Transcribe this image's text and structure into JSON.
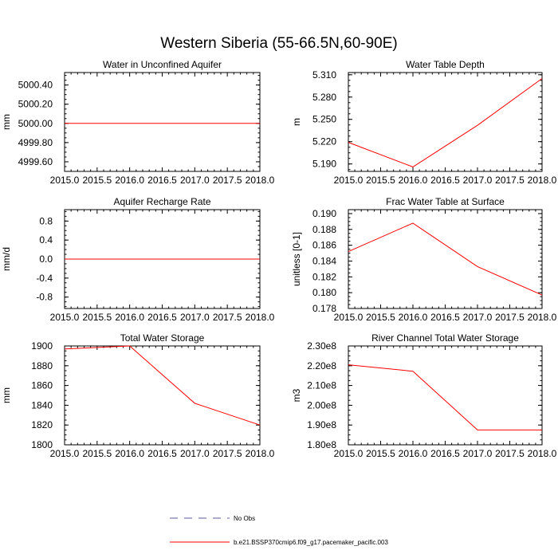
{
  "figure": {
    "title": "Western Siberia (55-66.5N,60-90E)"
  },
  "legend": [
    {
      "label": "No Obs",
      "style": "dashed",
      "color": "#5a5a9a"
    },
    {
      "label": "b.e21.BSSP370cmip6.f09_g17.pacemaker_pacific.003",
      "style": "solid",
      "color": "#ff0000"
    }
  ],
  "chart_data": [
    {
      "type": "line",
      "title": "Water in Unconfined Aquifer",
      "ylabel": "mm",
      "x": [
        2015.0,
        2016.0,
        2017.0,
        2018.0
      ],
      "xlim": [
        2015.0,
        2018.0
      ],
      "xticks": [
        "2015.0",
        "2015.5",
        "2016.0",
        "2016.5",
        "2017.0",
        "2017.5",
        "2018.0"
      ],
      "ylim": [
        4999.5,
        5000.53
      ],
      "yticks": [
        {
          "value": 4999.6,
          "label": "4999.60"
        },
        {
          "value": 4999.8,
          "label": "4999.80"
        },
        {
          "value": 5000.0,
          "label": "5000.00"
        },
        {
          "value": 5000.2,
          "label": "5000.20"
        },
        {
          "value": 5000.4,
          "label": "5000.40"
        }
      ],
      "series": [
        {
          "values": [
            5000.0,
            5000.0,
            5000.0,
            5000.0
          ],
          "color": "#ff0000"
        }
      ]
    },
    {
      "type": "line",
      "title": "Water Table Depth",
      "ylabel": "m",
      "x": [
        2015.0,
        2016.0,
        2017.0,
        2018.0
      ],
      "xlim": [
        2015.0,
        2018.0
      ],
      "xticks": [
        "2015.0",
        "2015.5",
        "2016.0",
        "2016.5",
        "2017.0",
        "2017.5",
        "2018.0"
      ],
      "ylim": [
        5.18,
        5.313
      ],
      "yticks": [
        {
          "value": 5.19,
          "label": "5.190"
        },
        {
          "value": 5.22,
          "label": "5.220"
        },
        {
          "value": 5.25,
          "label": "5.250"
        },
        {
          "value": 5.28,
          "label": "5.280"
        },
        {
          "value": 5.31,
          "label": "5.310"
        }
      ],
      "series": [
        {
          "values": [
            5.219,
            5.186,
            5.242,
            5.305
          ],
          "color": "#ff0000"
        }
      ]
    },
    {
      "type": "line",
      "title": "Aquifer Recharge Rate",
      "ylabel": "mm/d",
      "x": [
        2015.0,
        2016.0,
        2017.0,
        2018.0
      ],
      "xlim": [
        2015.0,
        2018.0
      ],
      "xticks": [
        "2015.0",
        "2015.5",
        "2016.0",
        "2016.5",
        "2017.0",
        "2017.5",
        "2018.0"
      ],
      "ylim": [
        -1.04,
        1.04
      ],
      "yticks": [
        {
          "value": -0.8,
          "label": "-0.8"
        },
        {
          "value": -0.4,
          "label": "-0.4"
        },
        {
          "value": 0.0,
          "label": "0.0"
        },
        {
          "value": 0.4,
          "label": "0.4"
        },
        {
          "value": 0.8,
          "label": "0.8"
        }
      ],
      "series": [
        {
          "values": [
            0.0,
            0.0,
            0.0,
            0.0
          ],
          "color": "#ff0000"
        }
      ]
    },
    {
      "type": "line",
      "title": "Frac Water Table at Surface",
      "ylabel": "unitless [0-1]",
      "x": [
        2015.0,
        2016.0,
        2017.0,
        2018.0
      ],
      "xlim": [
        2015.0,
        2018.0
      ],
      "xticks": [
        "2015.0",
        "2015.5",
        "2016.0",
        "2016.5",
        "2017.0",
        "2017.5",
        "2018.0"
      ],
      "ylim": [
        0.178,
        0.1905
      ],
      "yticks": [
        {
          "value": 0.178,
          "label": "0.178"
        },
        {
          "value": 0.18,
          "label": "0.180"
        },
        {
          "value": 0.182,
          "label": "0.182"
        },
        {
          "value": 0.184,
          "label": "0.184"
        },
        {
          "value": 0.186,
          "label": "0.186"
        },
        {
          "value": 0.188,
          "label": "0.188"
        },
        {
          "value": 0.19,
          "label": "0.190"
        }
      ],
      "series": [
        {
          "values": [
            0.1852,
            0.1888,
            0.1833,
            0.1797
          ],
          "color": "#ff0000"
        }
      ]
    },
    {
      "type": "line",
      "title": "Total Water Storage",
      "ylabel": "mm",
      "x": [
        2015.0,
        2016.0,
        2017.0,
        2018.0
      ],
      "xlim": [
        2015.0,
        2018.0
      ],
      "xticks": [
        "2015.0",
        "2015.5",
        "2016.0",
        "2016.5",
        "2017.0",
        "2017.5",
        "2018.0"
      ],
      "ylim": [
        1800,
        1900
      ],
      "yticks": [
        {
          "value": 1800,
          "label": "1800"
        },
        {
          "value": 1820,
          "label": "1820"
        },
        {
          "value": 1840,
          "label": "1840"
        },
        {
          "value": 1860,
          "label": "1860"
        },
        {
          "value": 1880,
          "label": "1880"
        },
        {
          "value": 1900,
          "label": "1900"
        }
      ],
      "series": [
        {
          "values": [
            1897,
            1900,
            1842,
            1820
          ],
          "color": "#ff0000"
        }
      ]
    },
    {
      "type": "line",
      "title": "River Channel Total Water Storage",
      "ylabel": "m3",
      "x": [
        2015.0,
        2016.0,
        2017.0,
        2018.0
      ],
      "xlim": [
        2015.0,
        2018.0
      ],
      "xticks": [
        "2015.0",
        "2015.5",
        "2016.0",
        "2016.5",
        "2017.0",
        "2017.5",
        "2018.0"
      ],
      "ylim": [
        180000000,
        230000000
      ],
      "yticks": [
        {
          "value": 180000000,
          "label": "1.80e8"
        },
        {
          "value": 190000000,
          "label": "1.90e8"
        },
        {
          "value": 200000000,
          "label": "2.00e8"
        },
        {
          "value": 210000000,
          "label": "2.10e8"
        },
        {
          "value": 220000000,
          "label": "2.20e8"
        },
        {
          "value": 230000000,
          "label": "2.30e8"
        }
      ],
      "series": [
        {
          "values": [
            220500000,
            217200000,
            187500000,
            187500000
          ],
          "color": "#ff0000"
        }
      ]
    }
  ]
}
